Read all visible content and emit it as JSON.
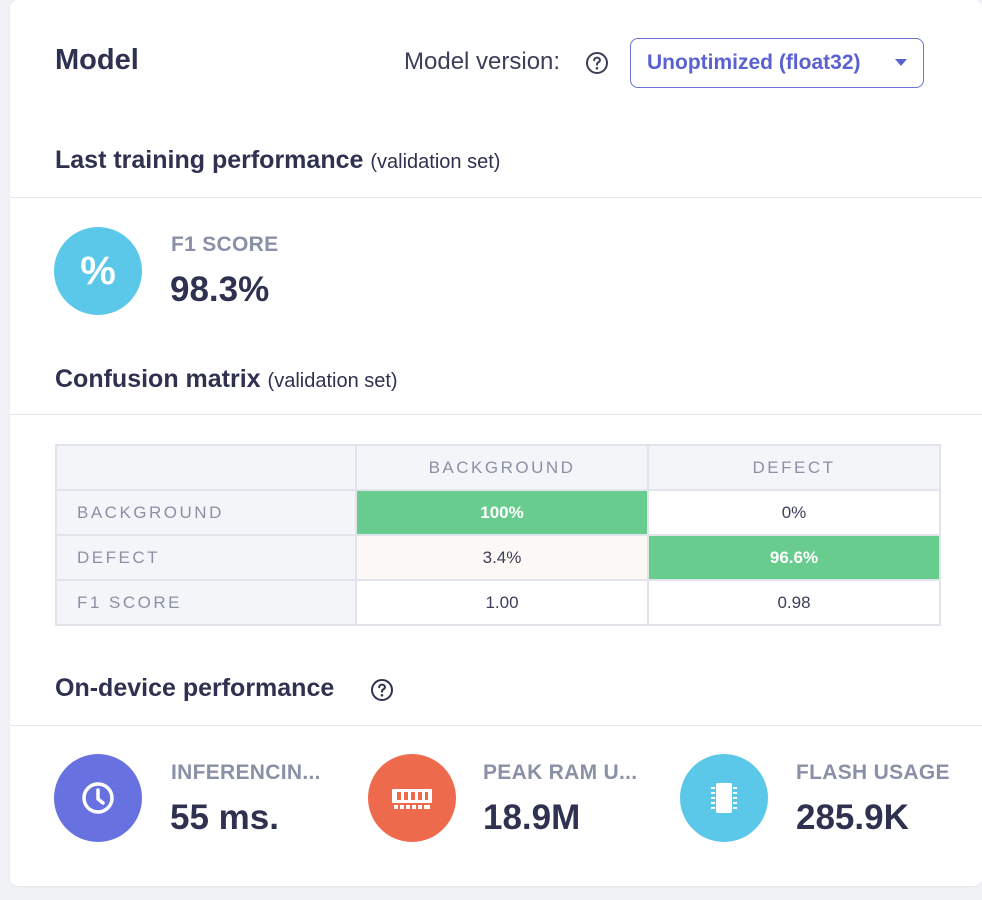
{
  "header": {
    "title": "Model",
    "version_label": "Model version:",
    "version_selected": "Unoptimized (float32)"
  },
  "training": {
    "title": "Last training performance",
    "subtitle": "(validation set)",
    "f1_label": "F1 SCORE",
    "f1_value": "98.3%",
    "f1_icon_glyph": "%"
  },
  "confusion": {
    "title": "Confusion matrix",
    "subtitle": "(validation set)",
    "columns": [
      "BACKGROUND",
      "DEFECT"
    ],
    "rows": [
      {
        "label": "BACKGROUND",
        "cells": [
          "100%",
          "0%"
        ]
      },
      {
        "label": "DEFECT",
        "cells": [
          "3.4%",
          "96.6%"
        ]
      },
      {
        "label": "F1 SCORE",
        "cells": [
          "1.00",
          "0.98"
        ]
      }
    ]
  },
  "device": {
    "title": "On-device performance",
    "metrics": [
      {
        "label": "INFERENCIN...",
        "value": "55 ms.",
        "icon": "clock-icon",
        "color": "#6772e0"
      },
      {
        "label": "PEAK RAM U...",
        "value": "18.9M",
        "icon": "ram-icon",
        "color": "#ee6a4c"
      },
      {
        "label": "FLASH USAGE",
        "value": "285.9K",
        "icon": "chip-icon",
        "color": "#5bc8ea"
      }
    ]
  },
  "colors": {
    "accent": "#5a62d1",
    "highlight": "#67cc8e",
    "f1_icon": "#5bc8ea"
  }
}
